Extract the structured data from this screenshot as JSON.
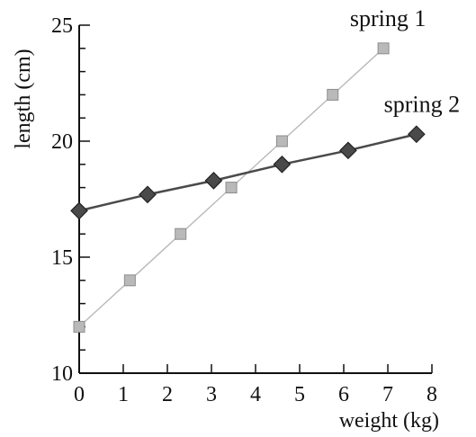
{
  "chart_data": {
    "type": "line",
    "title": "",
    "xlabel": "weight (kg)",
    "ylabel": "length (cm)",
    "xlim": [
      0,
      8
    ],
    "ylim": [
      10,
      25
    ],
    "x_ticks": [
      0,
      1,
      2,
      3,
      4,
      5,
      6,
      7,
      8
    ],
    "y_ticks": [
      10,
      15,
      20,
      25
    ],
    "grid": false,
    "legend": "direct labels near line ends",
    "series": [
      {
        "name": "spring 1",
        "color": "#b9b9b9",
        "marker": "square",
        "x": [
          0.0,
          1.15,
          2.3,
          3.45,
          4.6,
          5.75,
          6.9
        ],
        "y": [
          12,
          14,
          16,
          18,
          20,
          22,
          24
        ]
      },
      {
        "name": "spring 2",
        "color": "#4a4a4a",
        "marker": "diamond",
        "x": [
          0.0,
          1.55,
          3.05,
          4.6,
          6.1,
          7.65
        ],
        "y": [
          17.0,
          17.7,
          18.3,
          19.0,
          19.6,
          20.3
        ]
      }
    ]
  }
}
